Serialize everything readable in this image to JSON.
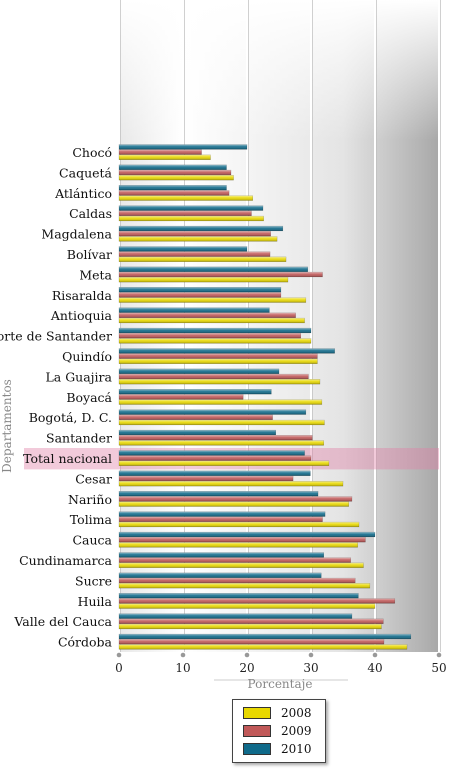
{
  "chart_data": {
    "type": "bar",
    "orientation": "horizontal",
    "ylabel": "Departamentos",
    "xlabel": "Porcentaje",
    "xlim": [
      0,
      50
    ],
    "xticks": [
      0,
      10,
      20,
      30,
      40,
      50
    ],
    "grid": true,
    "legend_position": "bottom",
    "highlight_category": "Total nacional",
    "categories": [
      "Chocó",
      "Caquetá",
      "Atlántico",
      "Caldas",
      "Magdalena",
      "Bolívar",
      "Meta",
      "Risaralda",
      "Antioquia",
      "Norte de Santander",
      "Quindío",
      "La Guajira",
      "Boyacá",
      "Bogotá, D. C.",
      "Santander",
      "Total nacional",
      "Cesar",
      "Nariño",
      "Tolima",
      "Cauca",
      "Cundinamarca",
      "Sucre",
      "Huila",
      "Valle del Cauca",
      "Córdoba"
    ],
    "series": [
      {
        "name": "2008",
        "color": "#e8d800",
        "values": [
          14.3,
          17.9,
          20.9,
          22.6,
          24.7,
          26.1,
          26.4,
          29.2,
          29.0,
          30.0,
          31.0,
          31.4,
          31.7,
          32.1,
          32.0,
          32.8,
          35.0,
          35.9,
          37.5,
          37.3,
          38.2,
          39.2,
          40.0,
          41.0,
          45.0
        ]
      },
      {
        "name": "2009",
        "color": "#c05858",
        "values": [
          12.9,
          17.5,
          17.2,
          20.7,
          23.7,
          23.6,
          31.8,
          25.3,
          27.6,
          28.4,
          31.0,
          29.6,
          19.4,
          24.0,
          30.2,
          30.0,
          27.2,
          36.4,
          31.8,
          38.5,
          36.2,
          36.9,
          43.1,
          41.3,
          41.4
        ]
      },
      {
        "name": "2010",
        "color": "#0f6a8a",
        "values": [
          20.0,
          16.8,
          16.8,
          22.5,
          25.6,
          20.0,
          29.5,
          25.3,
          23.5,
          30.0,
          33.7,
          25.0,
          23.8,
          29.2,
          24.5,
          29.0,
          29.9,
          31.1,
          32.2,
          40.0,
          32.0,
          31.6,
          37.4,
          36.4,
          45.6
        ]
      }
    ]
  }
}
